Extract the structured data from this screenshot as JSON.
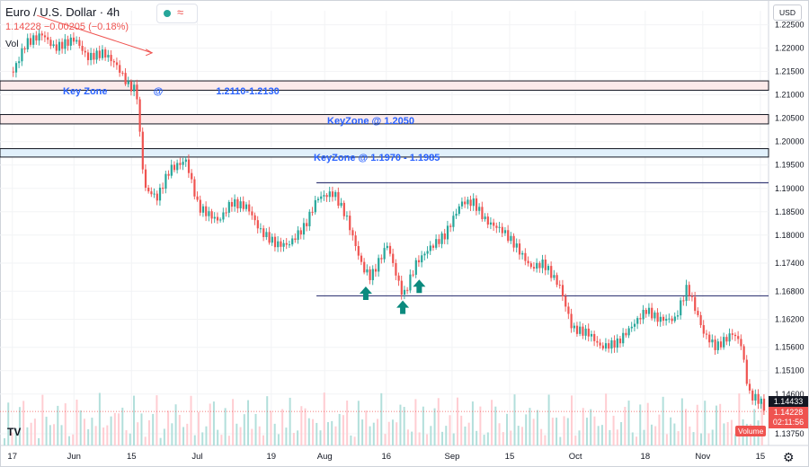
{
  "symbol": "Euro / U.S. Dollar · 4h",
  "last_price": "1.14228",
  "change": "−0.00205 (−0.18%)",
  "volume_label": "Vol",
  "currency": "USD",
  "volume_tag": "Volume",
  "gear_icon": "gear-icon",
  "logo_text": "TV",
  "countdown": "02:11:56",
  "price_tag_current": "1.14433",
  "price_tag_close": "1.14228",
  "colors": {
    "up": "#26a69a",
    "down": "#ef5350",
    "zone": "#2962ff",
    "text": "#131722"
  },
  "chart_data": {
    "type": "candlestick",
    "title": "Euro / U.S. Dollar · 4h",
    "ylim": [
      1.135,
      1.228
    ],
    "y_ticks": [
      "1.22500",
      "1.22000",
      "1.21500",
      "1.21000",
      "1.20500",
      "1.20000",
      "1.19500",
      "1.19000",
      "1.18500",
      "1.18000",
      "1.17400",
      "1.16800",
      "1.16200",
      "1.15600",
      "1.15100",
      "1.14600",
      "1.13750"
    ],
    "x_ticks": [
      "17",
      "Jun",
      "15",
      "Jul",
      "19",
      "Aug",
      "16",
      "Sep",
      "15",
      "Oct",
      "18",
      "Nov",
      "15"
    ],
    "price_series": [
      [
        "May 17",
        1.215
      ],
      [
        "May 20",
        1.221
      ],
      [
        "May 24",
        1.223
      ],
      [
        "May 27",
        1.22
      ],
      [
        "Jun 1",
        1.222
      ],
      [
        "Jun 4",
        1.218
      ],
      [
        "Jun 8",
        1.219
      ],
      [
        "Jun 11",
        1.2165
      ],
      [
        "Jun 14",
        1.212
      ],
      [
        "Jun 16",
        1.211
      ],
      [
        "Jun 17",
        1.199
      ],
      [
        "Jun 18",
        1.19
      ],
      [
        "Jun 21",
        1.188
      ],
      [
        "Jun 24",
        1.194
      ],
      [
        "Jun 28",
        1.196
      ],
      [
        "Jul 1",
        1.186
      ],
      [
        "Jul 6",
        1.183
      ],
      [
        "Jul 9",
        1.187
      ],
      [
        "Jul 13",
        1.186
      ],
      [
        "Jul 16",
        1.181
      ],
      [
        "Jul 20",
        1.178
      ],
      [
        "Jul 23",
        1.178
      ],
      [
        "Jul 27",
        1.182
      ],
      [
        "Jul 30",
        1.188
      ],
      [
        "Aug 3",
        1.189
      ],
      [
        "Aug 6",
        1.184
      ],
      [
        "Aug 10",
        1.173
      ],
      [
        "Aug 12",
        1.171
      ],
      [
        "Aug 16",
        1.178
      ],
      [
        "Aug 19",
        1.169
      ],
      [
        "Aug 20",
        1.167
      ],
      [
        "Aug 23",
        1.174
      ],
      [
        "Aug 26",
        1.177
      ],
      [
        "Aug 30",
        1.18
      ],
      [
        "Sep 3",
        1.187
      ],
      [
        "Sep 6",
        1.187
      ],
      [
        "Sep 9",
        1.183
      ],
      [
        "Sep 13",
        1.181
      ],
      [
        "Sep 16",
        1.178
      ],
      [
        "Sep 20",
        1.173
      ],
      [
        "Sep 23",
        1.174
      ],
      [
        "Sep 27",
        1.169
      ],
      [
        "Sep 30",
        1.16
      ],
      [
        "Oct 4",
        1.159
      ],
      [
        "Oct 7",
        1.156
      ],
      [
        "Oct 11",
        1.157
      ],
      [
        "Oct 14",
        1.16
      ],
      [
        "Oct 18",
        1.164
      ],
      [
        "Oct 21",
        1.162
      ],
      [
        "Oct 25",
        1.162
      ],
      [
        "Oct 28",
        1.169
      ],
      [
        "Nov 1",
        1.159
      ],
      [
        "Nov 4",
        1.156
      ],
      [
        "Nov 8",
        1.159
      ],
      [
        "Nov 10",
        1.157
      ],
      [
        "Nov 12",
        1.146
      ],
      [
        "Nov 15",
        1.1443
      ],
      [
        "Nov 16",
        1.1423
      ]
    ],
    "zones": [
      {
        "label": "Key Zone",
        "separator": "@",
        "range": "1.2110-1.2130",
        "low": 1.211,
        "high": 1.213
      },
      {
        "label": "KeyZone @ 1.2050",
        "low": 1.2038,
        "high": 1.2058
      },
      {
        "label": "KeyZone @ 1.1970 - 1.1985",
        "low": 1.1967,
        "high": 1.1985
      }
    ],
    "levels": [
      1.1912,
      1.167
    ],
    "arrows": [
      {
        "x": "Aug 11",
        "price": 1.169
      },
      {
        "x": "Aug 20",
        "price": 1.166
      },
      {
        "x": "Aug 24",
        "price": 1.1705
      }
    ],
    "trendline": [
      [
        "May 23",
        1.227
      ],
      [
        "Jun 20",
        1.219
      ]
    ],
    "grid": true,
    "legend": "top-left"
  }
}
